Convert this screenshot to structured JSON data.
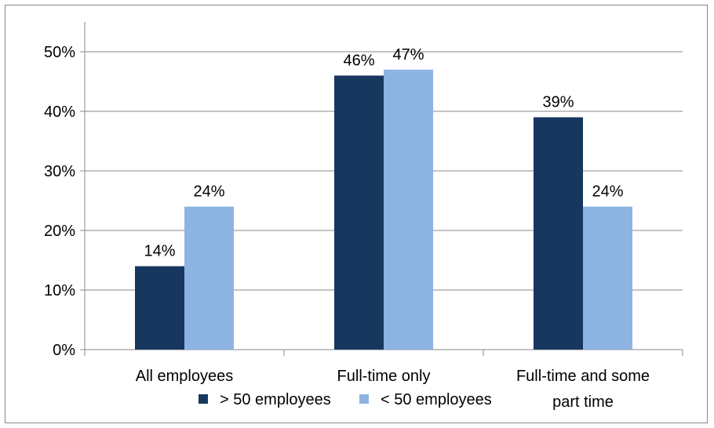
{
  "chart_data": {
    "type": "bar",
    "title": "",
    "xlabel": "",
    "ylabel": "",
    "categories": [
      "All employees",
      "Full-time only",
      "Full-time and some part time"
    ],
    "series": [
      {
        "name": "> 50 employees",
        "values": [
          14,
          46,
          39
        ],
        "labels": [
          "14%",
          "46%",
          "39%"
        ],
        "color": "#17375E"
      },
      {
        "name": "< 50 employees",
        "values": [
          24,
          47,
          24
        ],
        "labels": [
          "24%",
          "47%",
          "24%"
        ],
        "color": "#8DB3E2"
      }
    ],
    "ylim": [
      0,
      55
    ],
    "yticks": [
      0,
      10,
      20,
      30,
      40,
      50
    ],
    "ytick_labels": [
      "0%",
      "10%",
      "20%",
      "30%",
      "40%",
      "50%"
    ],
    "grid": true,
    "legend": "bottom"
  }
}
